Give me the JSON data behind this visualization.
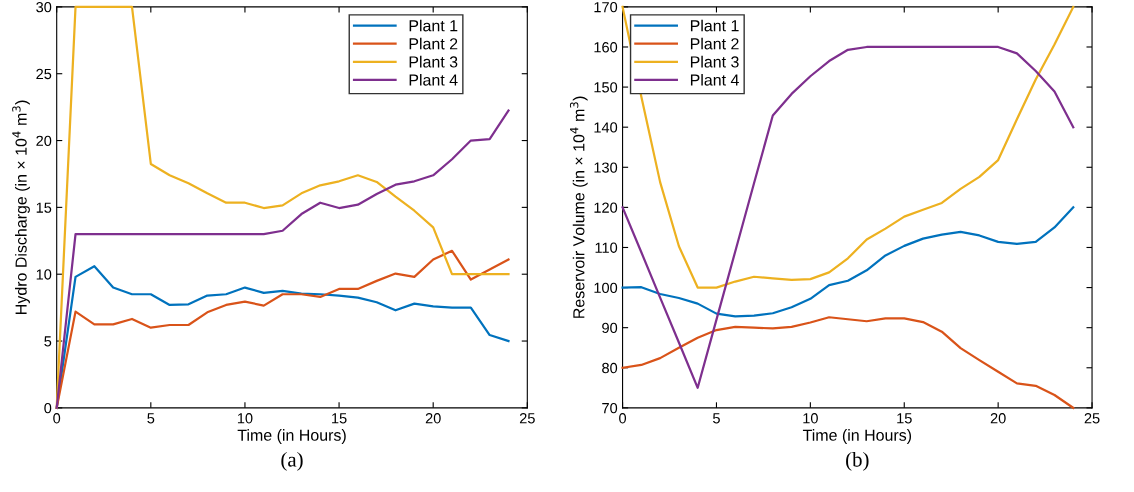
{
  "chart_data": [
    {
      "type": "line",
      "xlabel": "Time (in Hours)",
      "ylabel": "Hydro Discharge (in × 10$^{4}$ m$^{3}$)",
      "annotations": [
        "(a)"
      ],
      "x": [
        0,
        1,
        2,
        3,
        4,
        5,
        6,
        7,
        8,
        9,
        10,
        11,
        12,
        13,
        14,
        15,
        16,
        17,
        18,
        19,
        20,
        21,
        22,
        23,
        24
      ],
      "xlim": [
        0,
        25
      ],
      "xticks": [
        0,
        5,
        10,
        15,
        20,
        25
      ],
      "ylim": [
        0,
        30
      ],
      "yticks": [
        0,
        5,
        10,
        15,
        20,
        25,
        30
      ],
      "grid": false,
      "legend": "top right",
      "series": [
        {
          "name": "Plant 1",
          "color": "#0072bd",
          "values": [
            0,
            9.8,
            10.6,
            9.0,
            8.5,
            8.5,
            7.7,
            7.75,
            8.4,
            8.5,
            9.0,
            8.6,
            8.75,
            8.55,
            8.5,
            8.4,
            8.25,
            7.9,
            7.3,
            7.8,
            7.6,
            7.5,
            7.5,
            5.45,
            5.0
          ]
        },
        {
          "name": "Plant 2",
          "color": "#d95319",
          "values": [
            0,
            7.2,
            6.25,
            6.25,
            6.65,
            6.0,
            6.2,
            6.2,
            7.15,
            7.7,
            7.95,
            7.65,
            8.5,
            8.5,
            8.3,
            8.9,
            8.9,
            9.5,
            10.05,
            9.8,
            11.1,
            11.75,
            9.6,
            10.35,
            11.1
          ]
        },
        {
          "name": "Plant 3",
          "color": "#edb120",
          "values": [
            0,
            30,
            30,
            30,
            30,
            18.25,
            17.4,
            16.8,
            16.05,
            15.35,
            15.35,
            14.95,
            15.15,
            16.05,
            16.65,
            16.95,
            17.4,
            16.9,
            15.8,
            14.75,
            13.5,
            10,
            10,
            10,
            10
          ]
        },
        {
          "name": "Plant 4",
          "color": "#7e2f8e",
          "values": [
            0,
            13,
            13,
            13,
            13,
            13,
            13,
            13,
            13,
            13,
            13,
            13,
            13.25,
            14.5,
            15.35,
            14.95,
            15.2,
            16.0,
            16.7,
            16.95,
            17.4,
            18.6,
            20.0,
            20.1,
            22.25
          ]
        }
      ]
    },
    {
      "type": "line",
      "xlabel": "Time (in Hours)",
      "ylabel": "Reservoir Volume (in × 10$^{4}$ m$^{3}$)",
      "annotations": [
        "(b)"
      ],
      "x": [
        0,
        1,
        2,
        3,
        4,
        5,
        6,
        7,
        8,
        9,
        10,
        11,
        12,
        13,
        14,
        15,
        16,
        17,
        18,
        19,
        20,
        21,
        22,
        23,
        24
      ],
      "xlim": [
        0,
        25
      ],
      "xticks": [
        0,
        5,
        10,
        15,
        20,
        25
      ],
      "ylim": [
        70,
        170
      ],
      "yticks": [
        70,
        80,
        90,
        100,
        110,
        120,
        130,
        140,
        150,
        160,
        170
      ],
      "grid": false,
      "legend": "top left",
      "series": [
        {
          "name": "Plant 1",
          "color": "#0072bd",
          "values": [
            100.0,
            100.1,
            98.4,
            97.4,
            96.0,
            93.5,
            92.8,
            93.0,
            93.6,
            95.1,
            97.2,
            100.6,
            101.7,
            104.3,
            108.0,
            110.4,
            112.2,
            113.2,
            113.9,
            113.0,
            111.4,
            110.9,
            111.4,
            115.0,
            120
          ]
        },
        {
          "name": "Plant 2",
          "color": "#d95319",
          "values": [
            80.0,
            80.7,
            82.4,
            85.0,
            87.5,
            89.4,
            90.2,
            90.0,
            89.8,
            90.2,
            91.3,
            92.6,
            92.1,
            91.6,
            92.3,
            92.3,
            91.4,
            89.0,
            84.9,
            81.9,
            79.0,
            76.1,
            75.5,
            73.2,
            70
          ]
        },
        {
          "name": "Plant 3",
          "color": "#edb120",
          "values": [
            170,
            147.6,
            126.3,
            110.3,
            100,
            100,
            101.5,
            102.7,
            102.3,
            101.9,
            102.1,
            103.8,
            107.3,
            112.0,
            114.7,
            117.7,
            119.4,
            121.1,
            124.6,
            127.6,
            131.8,
            142.0,
            151.9,
            160.6,
            170
          ]
        },
        {
          "name": "Plant 4",
          "color": "#7e2f8e",
          "values": [
            120,
            108.8,
            97.5,
            86.3,
            75,
            92,
            109,
            126,
            142.9,
            148.3,
            152.7,
            156.5,
            159.3,
            160,
            160,
            160,
            160,
            160,
            160,
            160,
            160,
            158.4,
            154.0,
            148.9,
            140
          ]
        }
      ]
    }
  ]
}
